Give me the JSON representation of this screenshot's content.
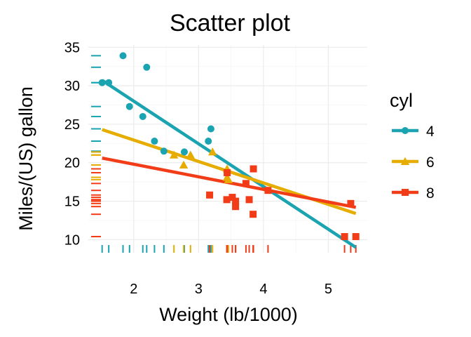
{
  "chart_data": {
    "type": "scatter",
    "title": "Scatter plot",
    "xlabel": "Weight (lb/1000)",
    "ylabel": "Miles/(US) gallon",
    "xlim": [
      1.3,
      5.6
    ],
    "ylim": [
      8.3,
      35.3
    ],
    "xticks": [
      2,
      3,
      4,
      5
    ],
    "yticks": [
      10,
      15,
      20,
      25,
      30,
      35
    ],
    "grid": true,
    "rug": true,
    "legend": {
      "title": "cyl",
      "position": "right"
    },
    "series": [
      {
        "name": "4",
        "color": "#1aa3b0",
        "marker": "circle",
        "points": [
          [
            1.513,
            30.4
          ],
          [
            1.615,
            30.4
          ],
          [
            1.835,
            33.9
          ],
          [
            1.935,
            27.3
          ],
          [
            2.2,
            32.4
          ],
          [
            2.14,
            26.0
          ],
          [
            2.32,
            22.8
          ],
          [
            2.465,
            21.5
          ],
          [
            2.78,
            21.4
          ],
          [
            3.15,
            22.8
          ],
          [
            3.19,
            24.4
          ]
        ],
        "fit": {
          "x": [
            1.513,
            5.424
          ],
          "y": [
            30.7,
            9.0
          ]
        }
      },
      {
        "name": "6",
        "color": "#e6ad00",
        "marker": "triangle",
        "points": [
          [
            2.62,
            21.0
          ],
          [
            2.875,
            21.0
          ],
          [
            2.77,
            19.7
          ],
          [
            3.215,
            21.4
          ],
          [
            3.44,
            18.1
          ],
          [
            3.44,
            19.2
          ],
          [
            3.46,
            17.8
          ]
        ],
        "fit": {
          "x": [
            1.513,
            5.424
          ],
          "y": [
            24.3,
            13.4
          ]
        }
      },
      {
        "name": "8",
        "color": "#f23c18",
        "marker": "square",
        "points": [
          [
            3.17,
            15.8
          ],
          [
            3.435,
            15.2
          ],
          [
            3.44,
            18.7
          ],
          [
            3.52,
            15.5
          ],
          [
            3.57,
            14.3
          ],
          [
            3.57,
            15.0
          ],
          [
            3.73,
            17.3
          ],
          [
            3.78,
            15.2
          ],
          [
            3.84,
            13.3
          ],
          [
            3.845,
            19.2
          ],
          [
            4.07,
            16.4
          ],
          [
            5.25,
            10.4
          ],
          [
            5.345,
            14.7
          ],
          [
            5.424,
            10.4
          ]
        ],
        "fit": {
          "x": [
            1.513,
            5.424
          ],
          "y": [
            20.6,
            14.2
          ]
        }
      }
    ]
  }
}
